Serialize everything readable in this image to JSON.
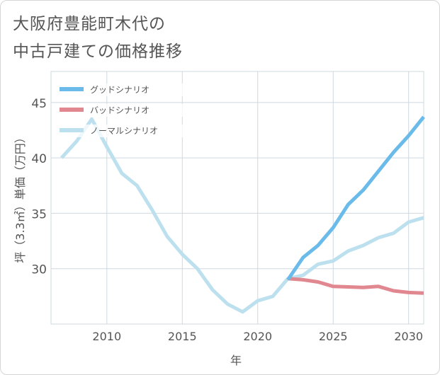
{
  "title_lines": [
    "大阪府豊能町木代の",
    "中古戸建ての価格推移"
  ],
  "chart_data": {
    "type": "line",
    "title": "大阪府豊能町木代の中古戸建ての価格推移",
    "xlabel": "年",
    "ylabel": "坪（3.3㎡）単価（万円）",
    "xlim": [
      2006.3,
      2031
    ],
    "ylim": [
      25,
      47.8
    ],
    "xticks": [
      2010,
      2015,
      2020,
      2025,
      2030
    ],
    "yticks": [
      30,
      35,
      40,
      45
    ],
    "grid": true,
    "legend_position": "top-left",
    "series": [
      {
        "name": "グッドシナリオ",
        "color": "#6bbbea",
        "x": [
          2022,
          2023,
          2024,
          2025,
          2026,
          2027,
          2028,
          2029,
          2030,
          2031
        ],
        "y": [
          29.0,
          31.0,
          32.1,
          33.7,
          35.8,
          37.1,
          38.8,
          40.5,
          42.0,
          43.7
        ]
      },
      {
        "name": "バッドシナリオ",
        "color": "#e0878f",
        "x": [
          2022,
          2023,
          2024,
          2025,
          2026,
          2027,
          2028,
          2029,
          2030,
          2031
        ],
        "y": [
          29.1,
          29.0,
          28.8,
          28.4,
          28.35,
          28.3,
          28.4,
          28.0,
          27.85,
          27.8
        ]
      },
      {
        "name": "ノーマルシナリオ",
        "color": "#bde0ef",
        "x": [
          2007,
          2008,
          2009,
          2010,
          2011,
          2012,
          2013,
          2014,
          2015,
          2016,
          2017,
          2018,
          2019,
          2020,
          2021,
          2022,
          2023,
          2024,
          2025,
          2026,
          2027,
          2028,
          2029,
          2030,
          2031
        ],
        "y": [
          40.0,
          41.5,
          43.5,
          41.0,
          38.6,
          37.5,
          35.3,
          32.9,
          31.3,
          30.0,
          28.1,
          26.8,
          26.1,
          27.1,
          27.5,
          29.1,
          29.4,
          30.4,
          30.7,
          31.6,
          32.1,
          32.8,
          33.2,
          34.2,
          34.6
        ]
      }
    ]
  }
}
